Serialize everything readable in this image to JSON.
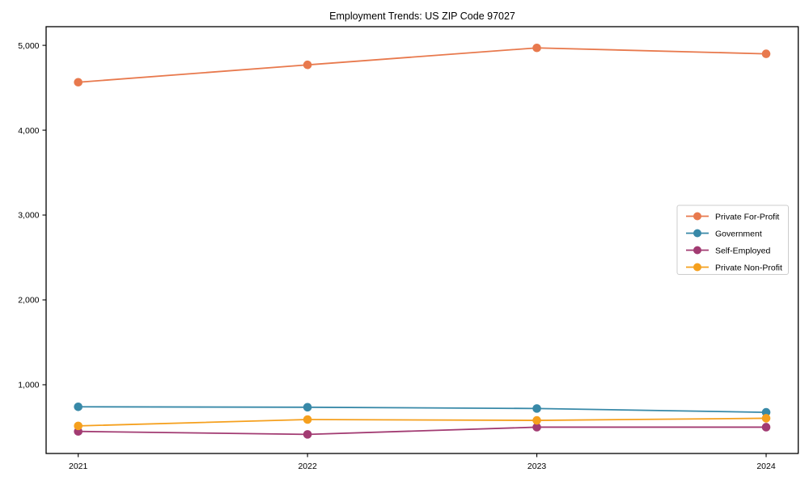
{
  "chart_data": {
    "type": "line",
    "title": "Employment Trends: US ZIP Code 97027",
    "xlabel": "",
    "ylabel": "",
    "x": [
      2021,
      2022,
      2023,
      2024
    ],
    "x_tick_labels": [
      "2021",
      "2022",
      "2023",
      "2024"
    ],
    "y_ticks": [
      1000,
      2000,
      3000,
      4000,
      5000
    ],
    "y_tick_labels": [
      "1,000",
      "2,000",
      "3,000",
      "4,000",
      "5,000"
    ],
    "xlim": [
      2020.86,
      2024.14
    ],
    "ylim": [
      190,
      5220
    ],
    "grid": false,
    "legend_position": "center right",
    "marker": "circle",
    "background_color": "#ffffff",
    "axis_color": "#000000",
    "legend_border_color": "#cccccc",
    "series": [
      {
        "name": "Private For-Profit",
        "color": "#E8794D",
        "values": [
          4565,
          4770,
          4970,
          4900
        ]
      },
      {
        "name": "Government",
        "color": "#3889A8",
        "values": [
          740,
          735,
          720,
          675
        ]
      },
      {
        "name": "Self-Employed",
        "color": "#A23B72",
        "values": [
          450,
          415,
          500,
          500
        ]
      },
      {
        "name": "Private Non-Profit",
        "color": "#F5A01E",
        "values": [
          515,
          590,
          580,
          605
        ]
      }
    ]
  }
}
